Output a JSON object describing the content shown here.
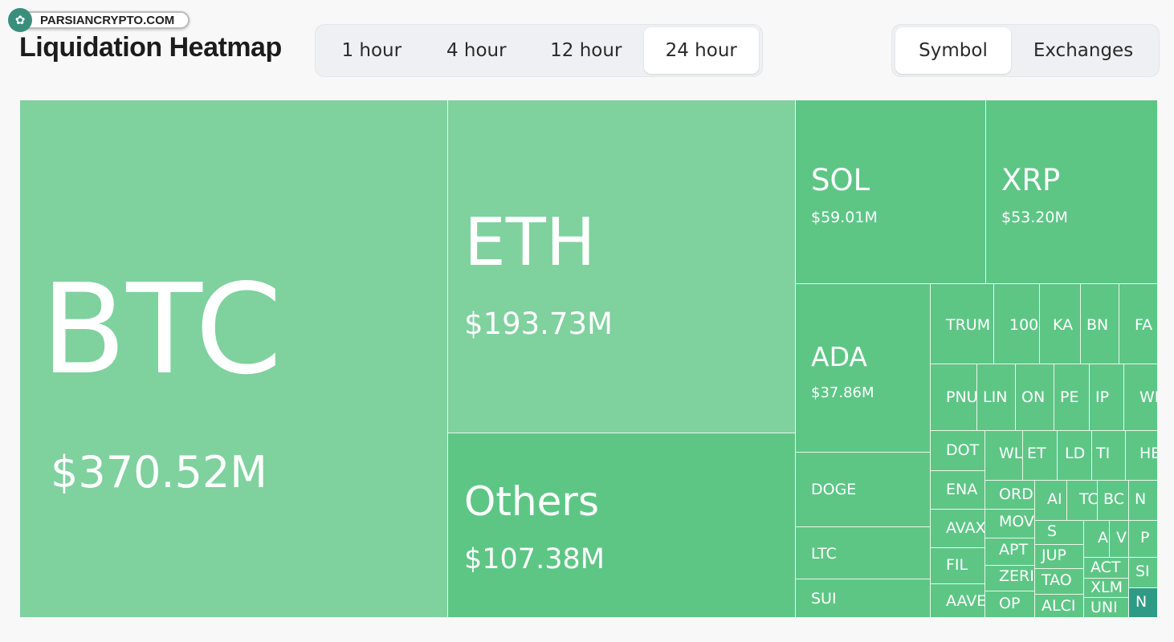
{
  "watermark": {
    "text": "PARSIANCRYPTO.COM",
    "logo_icon": "tree"
  },
  "title": "Liquidation Heatmap",
  "time_tabs": [
    "1 hour",
    "4 hour",
    "12 hour",
    "24 hour"
  ],
  "time_selected": "24 hour",
  "view_tabs": [
    "Symbol",
    "Exchanges"
  ],
  "view_selected": "Symbol",
  "colors": {
    "light_green": "#7fd19e",
    "green": "#5dc685",
    "teal": "#2f9a86"
  },
  "cells": [
    {
      "symbol": "BTC",
      "value": "$370.52M"
    },
    {
      "symbol": "ETH",
      "value": "$193.73M"
    },
    {
      "symbol": "Others",
      "value": "$107.38M"
    },
    {
      "symbol": "SOL",
      "value": "$59.01M"
    },
    {
      "symbol": "XRP",
      "value": "$53.20M"
    },
    {
      "symbol": "ADA",
      "value": "$37.86M"
    },
    {
      "symbol": "DOGE"
    },
    {
      "symbol": "LTC"
    },
    {
      "symbol": "SUI"
    },
    {
      "symbol": "TRUM"
    },
    {
      "symbol": "100("
    },
    {
      "symbol": "KA"
    },
    {
      "symbol": "BN"
    },
    {
      "symbol": "FA"
    },
    {
      "symbol": "PNU"
    },
    {
      "symbol": "LIN"
    },
    {
      "symbol": "ON"
    },
    {
      "symbol": "PE"
    },
    {
      "symbol": "IP"
    },
    {
      "symbol": "WI"
    },
    {
      "symbol": "DOT"
    },
    {
      "symbol": "WL"
    },
    {
      "symbol": "ET"
    },
    {
      "symbol": "LD"
    },
    {
      "symbol": "TI"
    },
    {
      "symbol": "HE"
    },
    {
      "symbol": "ENA"
    },
    {
      "symbol": "ORD"
    },
    {
      "symbol": "AI"
    },
    {
      "symbol": "TC"
    },
    {
      "symbol": "BC"
    },
    {
      "symbol": "N"
    },
    {
      "symbol": "AVAX"
    },
    {
      "symbol": "MOV"
    },
    {
      "symbol": "S"
    },
    {
      "symbol": "A"
    },
    {
      "symbol": "V"
    },
    {
      "symbol": "P"
    },
    {
      "symbol": "FIL"
    },
    {
      "symbol": "APT"
    },
    {
      "symbol": "JUP"
    },
    {
      "symbol": "ACT"
    },
    {
      "symbol": "SI"
    },
    {
      "symbol": "AAVE"
    },
    {
      "symbol": "ZERI"
    },
    {
      "symbol": "TAO"
    },
    {
      "symbol": "XLM"
    },
    {
      "symbol": "OP"
    },
    {
      "symbol": "ALCI"
    },
    {
      "symbol": "UNI"
    },
    {
      "symbol": "N"
    }
  ]
}
